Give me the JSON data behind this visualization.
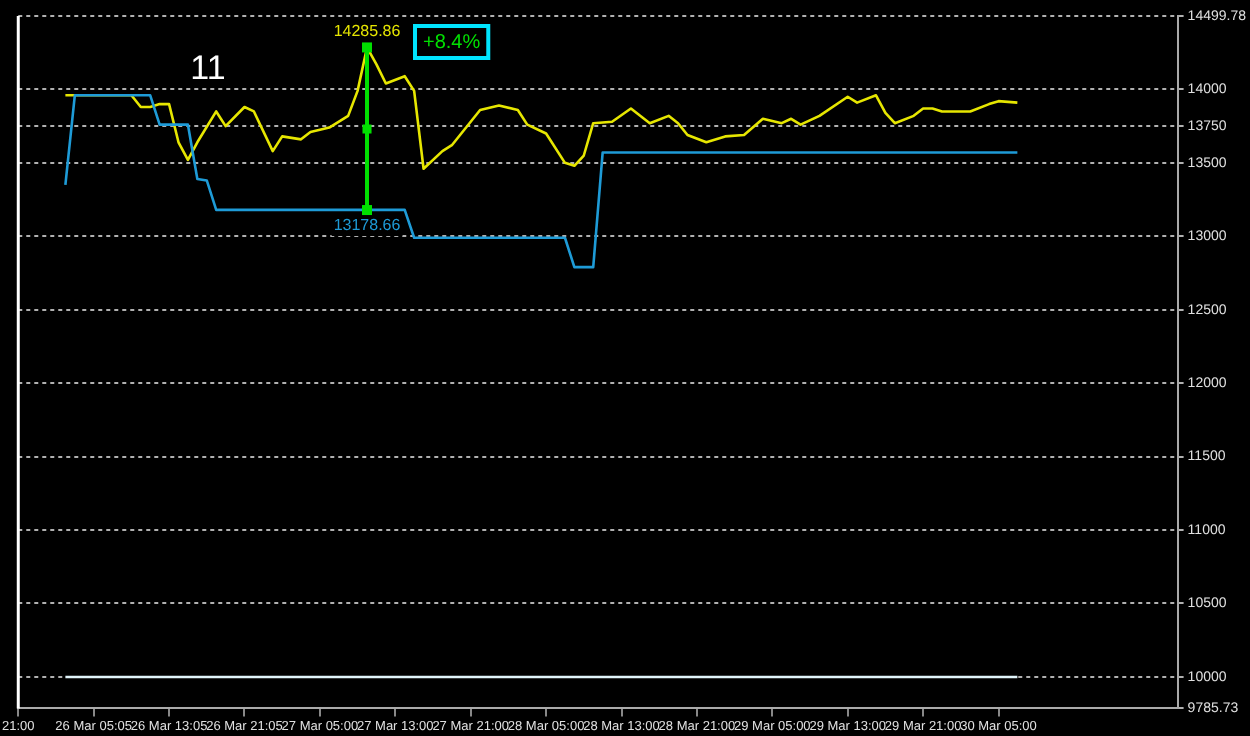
{
  "chart_data": {
    "type": "line",
    "categories": [
      "21:00",
      null,
      null,
      null,
      null,
      null,
      null,
      null,
      "26 Mar 05:05",
      null,
      null,
      null,
      null,
      null,
      null,
      null,
      "26 Mar 13:05",
      null,
      null,
      null,
      null,
      null,
      null,
      null,
      "26 Mar 21:05",
      null,
      null,
      null,
      null,
      null,
      null,
      null,
      "27 Mar 05:00",
      null,
      null,
      null,
      null,
      null,
      null,
      null,
      "27 Mar 13:00",
      null,
      null,
      null,
      null,
      null,
      null,
      null,
      "27 Mar 21:00",
      null,
      null,
      null,
      null,
      null,
      null,
      null,
      "28 Mar 05:00",
      null,
      null,
      null,
      null,
      null,
      null,
      null,
      "28 Mar 13:00",
      null,
      null,
      null,
      null,
      null,
      null,
      null,
      "28 Mar 21:00",
      null,
      null,
      null,
      null,
      null,
      null,
      null,
      "29 Mar 05:00",
      null,
      null,
      null,
      null,
      null,
      null,
      null,
      "29 Mar 13:00",
      null,
      null,
      null,
      null,
      null,
      null,
      null,
      "29 Mar 21:00",
      null,
      null,
      null,
      null,
      null,
      null,
      null,
      "30 Mar 05:00",
      null,
      null,
      null,
      null,
      null,
      null,
      null,
      null,
      null,
      null,
      null,
      null,
      null,
      null,
      null,
      null,
      null,
      null,
      null
    ],
    "ylim": [
      9785.73,
      14499.78
    ],
    "yticks": [
      9785.73,
      10000,
      10500,
      11000,
      11500,
      12000,
      12500,
      13000,
      13500,
      13750,
      14000,
      14499.78
    ],
    "grid": "y",
    "marker": "none",
    "series": [
      {
        "color": "#e0f4fa",
        "values": [
          null,
          null,
          null,
          null,
          null,
          10000,
          null,
          null,
          null,
          null,
          null,
          null,
          null,
          null,
          null,
          null,
          null,
          null,
          null,
          null,
          null,
          null,
          null,
          null,
          null,
          null,
          null,
          null,
          null,
          null,
          null,
          null,
          null,
          null,
          null,
          null,
          null,
          null,
          null,
          null,
          null,
          null,
          null,
          null,
          null,
          null,
          null,
          null,
          null,
          null,
          null,
          null,
          null,
          null,
          null,
          null,
          null,
          null,
          null,
          null,
          null,
          null,
          null,
          null,
          null,
          null,
          null,
          null,
          null,
          null,
          null,
          null,
          null,
          null,
          null,
          null,
          null,
          null,
          null,
          null,
          null,
          null,
          null,
          null,
          null,
          null,
          null,
          null,
          null,
          null,
          null,
          null,
          null,
          null,
          null,
          null,
          null,
          null,
          null,
          null,
          null,
          null,
          null,
          null,
          null,
          null,
          10000,
          null,
          null,
          null,
          null,
          null,
          null,
          null,
          null,
          null,
          null,
          null,
          null,
          null,
          null,
          null,
          null,
          null
        ]
      },
      {
        "color": "#1e9bd7",
        "values": [
          null,
          null,
          null,
          null,
          null,
          13350,
          13960,
          null,
          null,
          null,
          null,
          null,
          null,
          null,
          13960,
          13760,
          null,
          null,
          13760,
          13390,
          13380,
          13180,
          null,
          null,
          null,
          null,
          null,
          null,
          null,
          null,
          null,
          null,
          null,
          null,
          null,
          null,
          null,
          null,
          null,
          null,
          null,
          13180,
          12990,
          null,
          null,
          null,
          null,
          null,
          null,
          null,
          null,
          null,
          null,
          null,
          null,
          null,
          null,
          null,
          12990,
          12790,
          null,
          12790,
          13570,
          null,
          null,
          null,
          null,
          null,
          null,
          null,
          null,
          null,
          null,
          null,
          null,
          null,
          null,
          null,
          null,
          null,
          null,
          null,
          null,
          null,
          null,
          null,
          null,
          null,
          null,
          null,
          null,
          null,
          null,
          null,
          null,
          null,
          null,
          null,
          null,
          null,
          null,
          null,
          null,
          null,
          null,
          null,
          13570,
          null,
          null,
          null,
          null,
          null,
          null,
          null,
          null,
          null,
          null,
          null,
          null,
          null,
          null,
          null,
          null,
          null
        ]
      },
      {
        "color": "#e6e600",
        "values": [
          null,
          null,
          null,
          null,
          null,
          13960,
          null,
          null,
          null,
          null,
          null,
          null,
          13960,
          13880,
          13880,
          13900,
          13900,
          13640,
          13520,
          13640,
          null,
          13850,
          13750,
          null,
          13880,
          13850,
          null,
          13580,
          13680,
          null,
          13660,
          13710,
          null,
          13740,
          null,
          13820,
          13990,
          14285.86,
          14170,
          14040,
          null,
          14090,
          13990,
          13460,
          null,
          13580,
          13620,
          null,
          null,
          13860,
          null,
          13890,
          null,
          13860,
          13760,
          null,
          13700,
          null,
          13500,
          13480,
          13550,
          13770,
          null,
          13780,
          null,
          13870,
          null,
          13770,
          null,
          13820,
          13770,
          13690,
          null,
          13640,
          null,
          13680,
          null,
          13690,
          null,
          13800,
          null,
          13770,
          13800,
          13760,
          null,
          13820,
          null,
          null,
          13950,
          13910,
          null,
          13960,
          13840,
          13770,
          null,
          13820,
          13870,
          13870,
          13850,
          null,
          null,
          13850,
          null,
          13900,
          13920,
          null,
          13910,
          null,
          null,
          null,
          null,
          null,
          null,
          null,
          null,
          null,
          null,
          null,
          null,
          null,
          null,
          null,
          null,
          null
        ]
      },
      {
        "type": "scatter",
        "color": "#00e000",
        "marker": "square",
        "values": [
          null,
          null,
          null,
          null,
          null,
          null,
          null,
          null,
          null,
          null,
          null,
          null,
          null,
          null,
          null,
          null,
          null,
          null,
          null,
          null,
          null,
          null,
          null,
          null,
          null,
          null,
          null,
          null,
          null,
          null,
          null,
          null,
          null,
          null,
          null,
          null,
          null,
          13730,
          null,
          null,
          null,
          null,
          null,
          null,
          null,
          null,
          null,
          null,
          null,
          null,
          null,
          null,
          null,
          null,
          null,
          null,
          null,
          null,
          null,
          null,
          null,
          null,
          null,
          null,
          null,
          null,
          null,
          null,
          null,
          null,
          null,
          null,
          null,
          null,
          null,
          null,
          null,
          null,
          null,
          null,
          null,
          null,
          null,
          null,
          null,
          null,
          null,
          null,
          null,
          null,
          null,
          null,
          null,
          null,
          null,
          null,
          null,
          null,
          null,
          null,
          null,
          null,
          null,
          null,
          null,
          null,
          null,
          null,
          null,
          null,
          null,
          null,
          null,
          null,
          null,
          null,
          null,
          null,
          null,
          null,
          null,
          null,
          null,
          null
        ],
        "errors": [
          null,
          null,
          null,
          null,
          null,
          null,
          null,
          null,
          null,
          null,
          null,
          null,
          null,
          null,
          null,
          null,
          null,
          null,
          null,
          null,
          null,
          null,
          null,
          null,
          null,
          null,
          null,
          null,
          null,
          null,
          null,
          null,
          null,
          null,
          null,
          null,
          null,
          [
            13178.66,
            14285.86
          ],
          null,
          null,
          null,
          null,
          null,
          null,
          null,
          null,
          null,
          null,
          null,
          null,
          null,
          null,
          null,
          null,
          null,
          null,
          null,
          null,
          null,
          null,
          null,
          null,
          null,
          null,
          null,
          null,
          null,
          null,
          null,
          null,
          null,
          null,
          null,
          null,
          null,
          null,
          null,
          null,
          null,
          null,
          null,
          null,
          null,
          null,
          null,
          null,
          null,
          null,
          null,
          null,
          null,
          null,
          null,
          null,
          null,
          null,
          null,
          null,
          null,
          null,
          null,
          null,
          null,
          null,
          null,
          null,
          null,
          null,
          null,
          null,
          null,
          null,
          null,
          null,
          null,
          null,
          null,
          null,
          null,
          null,
          null,
          null,
          null,
          null
        ]
      }
    ],
    "ref_lines": [
      {
        "axis": "x",
        "value": "21:00",
        "color": "#ffffff"
      }
    ],
    "annotations": [
      "11",
      "+8.4%",
      {
        "text": "14285.86",
        "y": 14285.86
      },
      {
        "text": "13178.66",
        "y": 13178.66
      }
    ]
  }
}
